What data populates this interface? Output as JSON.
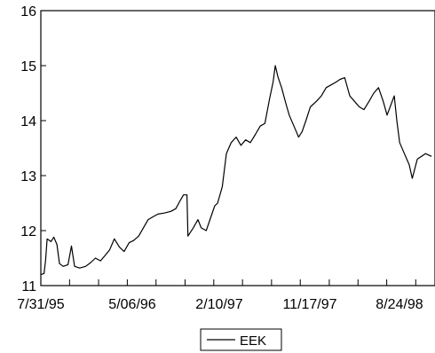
{
  "chart_data": {
    "type": "line",
    "title": "",
    "xlabel": "",
    "ylabel": "",
    "ylim": [
      11,
      16
    ],
    "yticks": [
      "11",
      "12",
      "13",
      "14",
      "15",
      "16"
    ],
    "xticks": [
      "7/31/95",
      "5/06/96",
      "2/10/97",
      "11/17/97",
      "8/24/98"
    ],
    "x_range": [
      "1995-07-31",
      "1998-12-31"
    ],
    "grid": false,
    "legend": "bottom-center",
    "series": [
      {
        "name": "EEK",
        "color": "#000000",
        "points": [
          [
            "1995-07-31",
            11.2
          ],
          [
            "1995-08-10",
            11.22
          ],
          [
            "1995-08-15",
            11.45
          ],
          [
            "1995-08-20",
            11.85
          ],
          [
            "1995-09-01",
            11.8
          ],
          [
            "1995-09-10",
            11.88
          ],
          [
            "1995-09-20",
            11.75
          ],
          [
            "1995-09-28",
            11.4
          ],
          [
            "1995-10-10",
            11.35
          ],
          [
            "1995-10-25",
            11.38
          ],
          [
            "1995-11-05",
            11.72
          ],
          [
            "1995-11-15",
            11.35
          ],
          [
            "1995-12-01",
            11.32
          ],
          [
            "1995-12-20",
            11.35
          ],
          [
            "1996-01-05",
            11.42
          ],
          [
            "1996-01-20",
            11.5
          ],
          [
            "1996-02-05",
            11.45
          ],
          [
            "1996-02-20",
            11.55
          ],
          [
            "1996-03-05",
            11.65
          ],
          [
            "1996-03-20",
            11.85
          ],
          [
            "1996-04-05",
            11.7
          ],
          [
            "1996-04-20",
            11.62
          ],
          [
            "1996-05-06",
            11.78
          ],
          [
            "1996-05-20",
            11.82
          ],
          [
            "1996-06-05",
            11.9
          ],
          [
            "1996-06-20",
            12.05
          ],
          [
            "1996-07-05",
            12.2
          ],
          [
            "1996-07-20",
            12.25
          ],
          [
            "1996-08-05",
            12.3
          ],
          [
            "1996-08-25",
            12.32
          ],
          [
            "1996-09-15",
            12.35
          ],
          [
            "1996-10-01",
            12.4
          ],
          [
            "1996-10-15",
            12.55
          ],
          [
            "1996-10-25",
            12.65
          ],
          [
            "1996-11-05",
            12.65
          ],
          [
            "1996-11-08",
            11.9
          ],
          [
            "1996-11-25",
            12.05
          ],
          [
            "1996-12-10",
            12.2
          ],
          [
            "1996-12-20",
            12.05
          ],
          [
            "1997-01-05",
            12.0
          ],
          [
            "1997-01-20",
            12.25
          ],
          [
            "1997-02-01",
            12.45
          ],
          [
            "1997-02-10",
            12.5
          ],
          [
            "1997-02-25",
            12.8
          ],
          [
            "1997-03-10",
            13.4
          ],
          [
            "1997-03-25",
            13.6
          ],
          [
            "1997-04-10",
            13.7
          ],
          [
            "1997-04-25",
            13.55
          ],
          [
            "1997-05-10",
            13.65
          ],
          [
            "1997-05-25",
            13.6
          ],
          [
            "1997-06-10",
            13.75
          ],
          [
            "1997-06-25",
            13.9
          ],
          [
            "1997-07-10",
            13.95
          ],
          [
            "1997-07-25",
            14.4
          ],
          [
            "1997-08-05",
            14.7
          ],
          [
            "1997-08-12",
            15.0
          ],
          [
            "1997-08-20",
            14.8
          ],
          [
            "1997-09-01",
            14.6
          ],
          [
            "1997-09-15",
            14.3
          ],
          [
            "1997-09-25",
            14.1
          ],
          [
            "1997-10-10",
            13.9
          ],
          [
            "1997-10-25",
            13.7
          ],
          [
            "1997-11-05",
            13.8
          ],
          [
            "1997-11-17",
            14.0
          ],
          [
            "1997-12-01",
            14.25
          ],
          [
            "1997-12-20",
            14.35
          ],
          [
            "1998-01-05",
            14.45
          ],
          [
            "1998-01-20",
            14.6
          ],
          [
            "1998-02-05",
            14.65
          ],
          [
            "1998-02-20",
            14.7
          ],
          [
            "1998-03-05",
            14.75
          ],
          [
            "1998-03-20",
            14.78
          ],
          [
            "1998-04-05",
            14.45
          ],
          [
            "1998-04-20",
            14.35
          ],
          [
            "1998-05-05",
            14.25
          ],
          [
            "1998-05-20",
            14.2
          ],
          [
            "1998-06-05",
            14.35
          ],
          [
            "1998-06-20",
            14.5
          ],
          [
            "1998-07-05",
            14.6
          ],
          [
            "1998-07-20",
            14.35
          ],
          [
            "1998-08-01",
            14.1
          ],
          [
            "1998-08-24",
            14.45
          ],
          [
            "1998-09-01",
            14.0
          ],
          [
            "1998-09-10",
            13.6
          ],
          [
            "1998-09-25",
            13.4
          ],
          [
            "1998-10-10",
            13.2
          ],
          [
            "1998-10-20",
            12.95
          ],
          [
            "1998-11-05",
            13.3
          ],
          [
            "1998-12-01",
            13.4
          ],
          [
            "1998-12-20",
            13.35
          ]
        ]
      }
    ]
  }
}
